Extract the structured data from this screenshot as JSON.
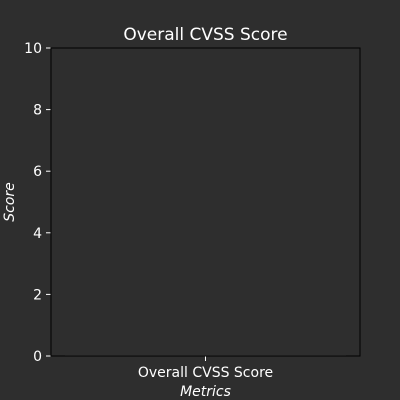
{
  "chart_data": {
    "type": "bar",
    "title": "Overall CVSS Score",
    "xlabel": "Metrics",
    "ylabel": "Score",
    "categories": [
      "Overall CVSS Score"
    ],
    "values": [
      0
    ],
    "ylim": [
      0,
      10
    ],
    "yticks": [
      0,
      2,
      4,
      6,
      8,
      10
    ],
    "grid": false,
    "legend": "none",
    "colors": {
      "background": "#2e2e2e",
      "plot_background": "#2e2e2e",
      "axis": "#000000",
      "text": "#ffffff",
      "bar": "#3a3a3a"
    }
  }
}
